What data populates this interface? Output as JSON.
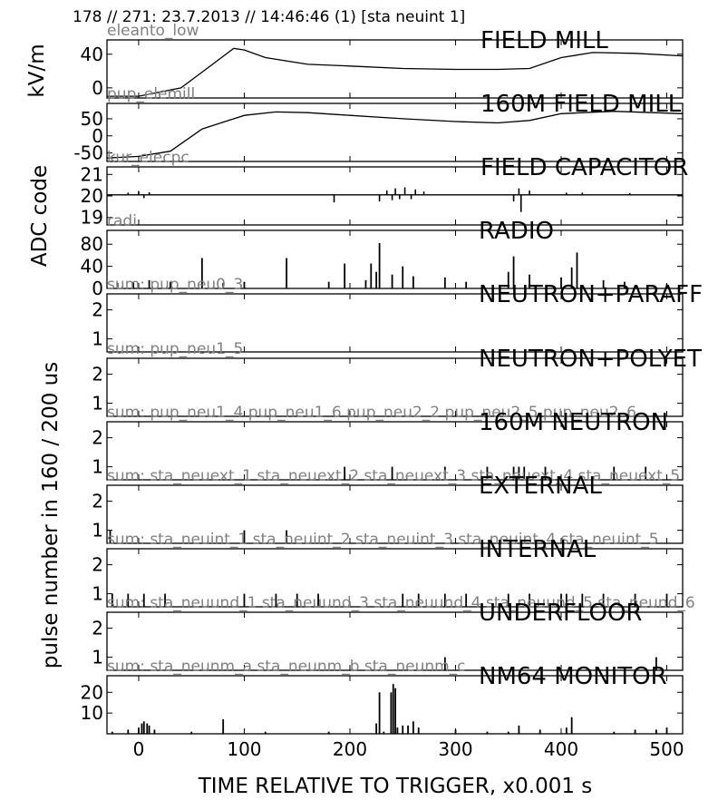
{
  "header": {
    "text": "178 // 271:   23.7.2013 // 14:46:46 (1)  [sta neuint 1]"
  },
  "xlabel": "TIME RELATIVE TO TRIGGER,   x0.001 s",
  "ylabels": {
    "kv": "kV/m",
    "adc": "ADC code",
    "pulse": "pulse number in 160 / 200 us"
  },
  "chart_data": [
    {
      "type": "line",
      "title": "FIELD MILL",
      "source_label": "eleanto_low",
      "xlim": [
        -30,
        515
      ],
      "xticks": [
        0,
        100,
        200,
        300,
        400,
        500
      ],
      "ylim": [
        -12,
        57
      ],
      "yticks": [
        0,
        40
      ],
      "ylabel": "kV/m",
      "x": [
        -30,
        0,
        40,
        70,
        90,
        100,
        120,
        160,
        200,
        250,
        300,
        340,
        370,
        400,
        430,
        470,
        515
      ],
      "y": [
        -10,
        -10,
        0,
        28,
        47,
        45,
        36,
        28,
        26,
        23,
        22,
        22,
        23,
        36,
        42,
        41,
        38
      ]
    },
    {
      "type": "line",
      "title": "160M FIELD MILL",
      "source_label": "pup_elemill",
      "xlim": [
        -30,
        515
      ],
      "xticks": [
        0,
        100,
        200,
        300,
        400,
        500
      ],
      "ylim": [
        -75,
        95
      ],
      "yticks": [
        50,
        0,
        -50
      ],
      "x": [
        -30,
        0,
        30,
        60,
        100,
        130,
        160,
        200,
        250,
        300,
        340,
        370,
        400,
        450,
        515
      ],
      "y": [
        -65,
        -60,
        -45,
        20,
        60,
        70,
        68,
        60,
        50,
        42,
        38,
        45,
        65,
        72,
        65
      ]
    },
    {
      "type": "line",
      "title": "FIELD CAPACITOR",
      "source_label": "kur_elecpc",
      "xlim": [
        -30,
        515
      ],
      "xticks": [
        0,
        100,
        200,
        300,
        400,
        500
      ],
      "ylim": [
        18.65,
        21.35
      ],
      "yticks": [
        21,
        20,
        19
      ],
      "ylabel": "ADC code",
      "baseline": 20.05,
      "spikes": [
        [
          0,
          0.18
        ],
        [
          5,
          -0.15
        ],
        [
          10,
          0.12
        ],
        [
          -10,
          0.1
        ],
        [
          185,
          -0.35
        ],
        [
          228,
          -0.3
        ],
        [
          235,
          0.2
        ],
        [
          240,
          -0.25
        ],
        [
          243,
          0.3
        ],
        [
          247,
          -0.2
        ],
        [
          252,
          0.35
        ],
        [
          258,
          -0.2
        ],
        [
          262,
          0.25
        ],
        [
          270,
          0.15
        ],
        [
          355,
          -0.3
        ],
        [
          360,
          0.3
        ],
        [
          362,
          -0.8
        ],
        [
          370,
          0.2
        ],
        [
          405,
          0.1
        ],
        [
          420,
          0.1
        ],
        [
          465,
          0.08
        ]
      ]
    },
    {
      "type": "bar",
      "title": "RADIO",
      "source_label": "radi",
      "xlim": [
        -30,
        515
      ],
      "xticks": [
        0,
        100,
        200,
        300,
        400,
        500
      ],
      "ylim": [
        0,
        105
      ],
      "yticks": [
        0,
        40,
        80
      ],
      "x": [
        -20,
        -5,
        10,
        30,
        60,
        80,
        100,
        140,
        180,
        195,
        215,
        220,
        225,
        228,
        240,
        250,
        260,
        290,
        310,
        350,
        355,
        370,
        400,
        410,
        415,
        440,
        460,
        500
      ],
      "values": [
        10,
        12,
        15,
        12,
        55,
        10,
        12,
        55,
        12,
        45,
        15,
        45,
        30,
        82,
        25,
        40,
        22,
        20,
        12,
        30,
        58,
        25,
        20,
        38,
        65,
        15,
        12,
        8
      ]
    },
    {
      "type": "bar",
      "title": "NEUTRON+PARAFF",
      "source_label": "sum: pup_neu0_3",
      "xlim": [
        -30,
        515
      ],
      "xticks": [
        0,
        100,
        200,
        300,
        400,
        500
      ],
      "ylim": [
        0.55,
        2.55
      ],
      "yticks": [
        2,
        1
      ],
      "ylabel": "pulse number in 160 / 200 us",
      "x": [],
      "values": []
    },
    {
      "type": "bar",
      "title": "NEUTRON+POLYET",
      "source_label": "sum: pup_neu1_5",
      "xlim": [
        -30,
        515
      ],
      "xticks": [
        0,
        100,
        200,
        300,
        400,
        500
      ],
      "ylim": [
        0.55,
        2.55
      ],
      "yticks": [
        2,
        1
      ],
      "x": [],
      "values": []
    },
    {
      "type": "bar",
      "title": "160M NEUTRON",
      "source_label": "sum: pup_neu1_4 pup_neu1_6 pup_neu2_2 pup_neu2_5 pup_neu2_6",
      "xlim": [
        -30,
        515
      ],
      "xticks": [
        0,
        100,
        200,
        300,
        400,
        500
      ],
      "ylim": [
        0.55,
        2.55
      ],
      "yticks": [
        2,
        1
      ],
      "x": [
        195,
        240,
        290,
        330,
        355,
        360,
        365,
        385,
        450,
        480
      ],
      "values": [
        1,
        1,
        1,
        1,
        1,
        1,
        1,
        1,
        1,
        1
      ]
    },
    {
      "type": "bar",
      "title": "EXTERNAL",
      "source_label": "sum: sta_neuext_1 sta_neuext_2 sta_neuext_3 sta_neuext_4 sta_neuext_5",
      "xlim": [
        -30,
        515
      ],
      "xticks": [
        0,
        100,
        200,
        300,
        400,
        500
      ],
      "ylim": [
        0.55,
        2.55
      ],
      "yticks": [
        2,
        1
      ],
      "x": [
        -27,
        100,
        140
      ],
      "values": [
        1,
        1,
        1
      ]
    },
    {
      "type": "bar",
      "title": "INTERNAL",
      "source_label": "sum: sta_neuint_1 sta_neuint_2 sta_neuint_3 sta_neuint_4 sta_neuint_5",
      "xlim": [
        -30,
        515
      ],
      "xticks": [
        0,
        100,
        200,
        300,
        400,
        500
      ],
      "ylim": [
        0.55,
        2.55
      ],
      "yticks": [
        2,
        1
      ],
      "x": [
        -25,
        -10,
        5,
        25,
        100,
        130,
        150,
        170,
        250,
        265,
        290,
        310,
        350,
        370,
        400,
        405,
        420,
        440,
        470,
        500
      ],
      "values": [
        1,
        1,
        1,
        1,
        1,
        1,
        1,
        1,
        1,
        1,
        1,
        1,
        1,
        1,
        1,
        1,
        1,
        1,
        1,
        1
      ]
    },
    {
      "type": "bar",
      "title": "UNDERFLOOR",
      "source_label": "sum: sta_neuund_1 sta_neuund_3 sta_neuund_4 sta_neuund_5 sta_neund_6",
      "xlim": [
        -30,
        515
      ],
      "xticks": [
        0,
        100,
        200,
        300,
        400,
        500
      ],
      "ylim": [
        0.55,
        2.55
      ],
      "yticks": [
        2,
        1
      ],
      "x": [
        290,
        490
      ],
      "values": [
        1,
        1
      ]
    },
    {
      "type": "bar",
      "title": "NM64 MONITOR",
      "source_label": "sum: sta_neunm_a sta_neunm_b sta_neunm_c",
      "xlim": [
        -30,
        515
      ],
      "xticks": [
        0,
        100,
        200,
        300,
        400,
        500
      ],
      "ylim": [
        0,
        28
      ],
      "yticks": [
        10,
        20
      ],
      "x": [
        -25,
        -10,
        0,
        3,
        5,
        8,
        10,
        15,
        50,
        80,
        120,
        180,
        225,
        228,
        232,
        239,
        241,
        243,
        245,
        250,
        255,
        260,
        265,
        300,
        330,
        350,
        360,
        380,
        405,
        410,
        450,
        470,
        490,
        500
      ],
      "values": [
        1,
        2,
        3,
        5,
        6,
        5,
        4,
        2,
        1,
        7,
        1,
        1,
        5,
        20,
        1,
        20,
        24,
        22,
        3,
        4,
        4,
        6,
        3,
        2,
        1,
        1,
        4,
        2,
        3,
        8,
        1,
        2,
        2,
        3
      ]
    }
  ]
}
